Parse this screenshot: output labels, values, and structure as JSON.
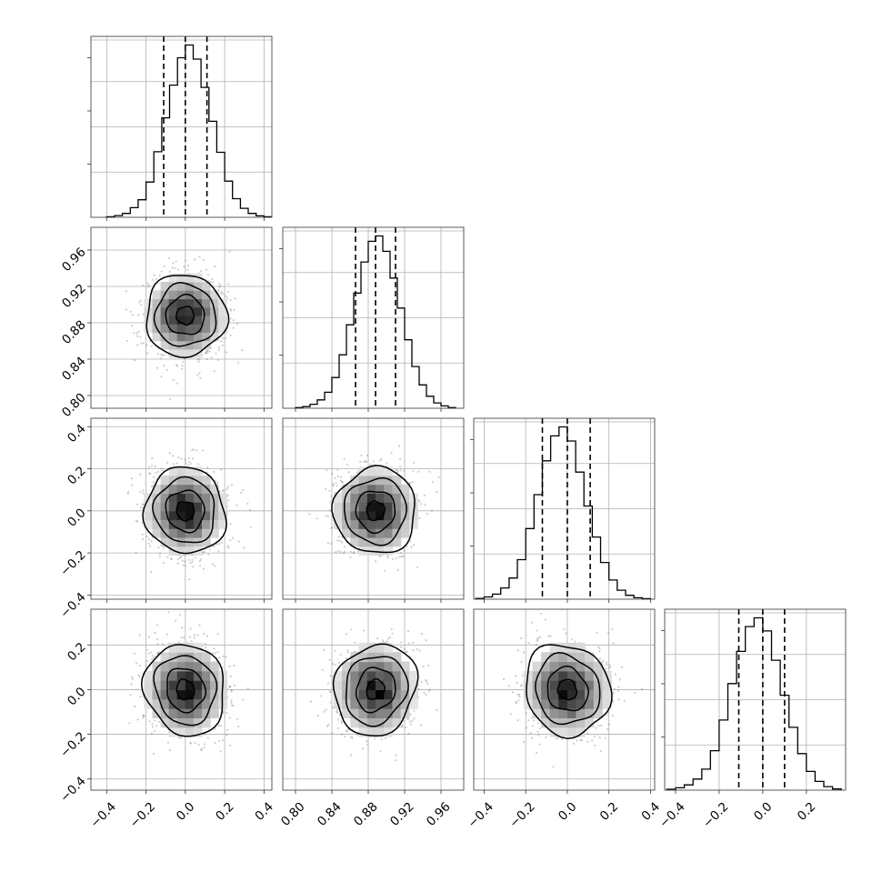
{
  "chart_data": {
    "type": "corner",
    "n_params": 4,
    "grid": true,
    "colors": {
      "line": "#000000",
      "grid": "#b0b0b0",
      "points": "#6f6f6f"
    },
    "params": [
      {
        "mean": 0.0,
        "sd": 0.1,
        "xlim": [
          -0.48,
          0.44
        ],
        "ylim": [
          -0.45,
          0.36
        ],
        "ticks": [
          -0.4,
          -0.2,
          0.0,
          0.2,
          0.4
        ],
        "tick_labels": [
          "−0.4",
          "−0.2",
          "0.0",
          "0.2",
          "0.4"
        ],
        "quantiles": [
          -0.11,
          0.0,
          0.11
        ]
      },
      {
        "mean": 0.888,
        "sd": 0.022,
        "xlim": [
          0.786,
          0.985
        ],
        "ylim": [
          0.786,
          0.985
        ],
        "ticks": [
          0.8,
          0.84,
          0.88,
          0.92,
          0.96
        ],
        "tick_labels": [
          "0.80",
          "0.84",
          "0.88",
          "0.92",
          "0.96"
        ],
        "quantiles": [
          0.866,
          0.888,
          0.91
        ]
      },
      {
        "mean": 0.0,
        "sd": 0.1,
        "xlim": [
          -0.45,
          0.42
        ],
        "ylim": [
          -0.42,
          0.44
        ],
        "ticks": [
          -0.4,
          -0.2,
          0.0,
          0.2,
          0.4
        ],
        "tick_labels": [
          "−0.4",
          "−0.2",
          "0.0",
          "0.2",
          "0.4"
        ],
        "quantiles": [
          -0.12,
          0.0,
          0.11
        ]
      },
      {
        "mean": 0.0,
        "sd": 0.1,
        "xlim": [
          -0.45,
          0.38
        ],
        "ylim": [
          -0.45,
          0.36
        ],
        "ticks": [
          -0.4,
          -0.2,
          0.0,
          0.2
        ],
        "tick_labels": [
          "−0.4",
          "−0.2",
          "0.0",
          "0.2"
        ],
        "quantiles": [
          -0.11,
          0.0,
          0.1
        ]
      }
    ],
    "histograms": [
      {
        "param": 0,
        "edges_from": -0.4,
        "bin_width": 0.04,
        "counts": [
          2,
          6,
          14,
          34,
          62,
          125,
          232,
          352,
          468,
          565,
          610,
          560,
          460,
          340,
          230,
          128,
          66,
          32,
          14,
          5,
          2
        ]
      },
      {
        "param": 1,
        "edges_from": 0.8,
        "bin_width": 0.008,
        "counts": [
          2,
          5,
          12,
          25,
          48,
          92,
          160,
          250,
          345,
          438,
          500,
          516,
          470,
          390,
          300,
          205,
          125,
          70,
          36,
          16,
          7,
          2
        ]
      },
      {
        "param": 2,
        "edges_from": -0.44,
        "bin_width": 0.04,
        "counts": [
          3,
          8,
          18,
          40,
          75,
          140,
          250,
          370,
          490,
          578,
          610,
          560,
          450,
          330,
          220,
          130,
          68,
          32,
          14,
          5,
          2
        ]
      },
      {
        "param": 3,
        "edges_from": -0.44,
        "bin_width": 0.04,
        "counts": [
          3,
          8,
          18,
          38,
          72,
          135,
          240,
          365,
          475,
          560,
          590,
          545,
          445,
          325,
          215,
          125,
          64,
          30,
          12,
          4
        ]
      }
    ]
  }
}
